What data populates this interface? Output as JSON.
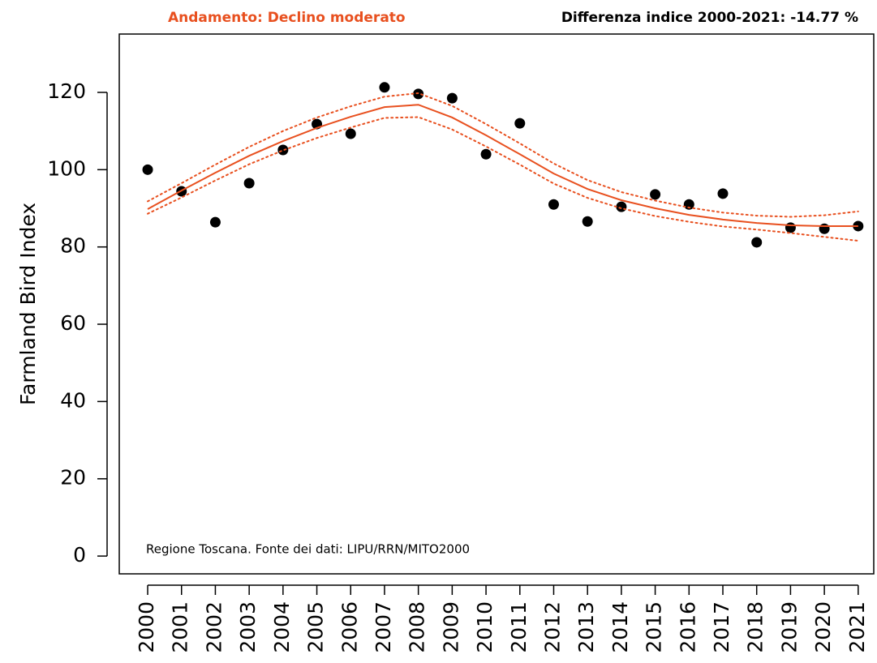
{
  "chart_data": {
    "type": "line",
    "title": "Andamento:  Declino moderato",
    "subtitle": "Differenza indice 2000-2021: -14.77 %",
    "title_color": "#e8501f",
    "ylabel": "Farmland Bird Index",
    "annotation": "Regione Toscana. Fonte dei dati: LIPU/RRN/MITO2000",
    "x": [
      2000,
      2001,
      2002,
      2003,
      2004,
      2005,
      2006,
      2007,
      2008,
      2009,
      2010,
      2011,
      2012,
      2013,
      2014,
      2015,
      2016,
      2017,
      2018,
      2019,
      2020,
      2021
    ],
    "xlim": [
      1999.16,
      2021.46
    ],
    "xticks": [
      2000,
      2001,
      2002,
      2003,
      2004,
      2005,
      2006,
      2007,
      2008,
      2009,
      2010,
      2011,
      2012,
      2013,
      2014,
      2015,
      2016,
      2017,
      2018,
      2019,
      2020,
      2021
    ],
    "ylim": [
      -4.6,
      135.1
    ],
    "yticks": [
      0,
      20,
      40,
      60,
      80,
      100,
      120
    ],
    "grid": false,
    "series": [
      {
        "style": "points",
        "color": "#000000",
        "values": [
          100,
          94.4,
          86.4,
          96.5,
          105.1,
          111.8,
          109.3,
          121.3,
          119.6,
          118.5,
          104.0,
          112.0,
          91.0,
          86.6,
          90.4,
          93.6,
          91.0,
          93.8,
          81.2,
          85.0,
          84.7,
          85.4
        ]
      },
      {
        "style": "solid",
        "color": "#e8501f",
        "values": [
          89.8,
          94.6,
          99.2,
          103.6,
          107.4,
          110.8,
          113.7,
          116.2,
          116.8,
          113.5,
          108.9,
          104.0,
          99.0,
          95.0,
          92.1,
          90.0,
          88.3,
          87.1,
          86.2,
          85.6,
          85.4,
          85.4
        ]
      },
      {
        "style": "dotted",
        "color": "#e8501f",
        "values": [
          91.8,
          96.5,
          101.3,
          105.9,
          110.0,
          113.5,
          116.4,
          118.9,
          119.8,
          116.5,
          111.8,
          106.8,
          101.6,
          97.3,
          94.2,
          92.0,
          90.2,
          88.9,
          88.1,
          87.8,
          88.2,
          89.2
        ]
      },
      {
        "style": "dotted",
        "color": "#e8501f",
        "values": [
          88.6,
          92.8,
          97.2,
          101.4,
          105.0,
          108.2,
          110.9,
          113.4,
          113.6,
          110.4,
          106.0,
          101.3,
          96.4,
          92.7,
          90.0,
          88.0,
          86.5,
          85.3,
          84.5,
          83.6,
          82.6,
          81.6
        ]
      }
    ]
  }
}
